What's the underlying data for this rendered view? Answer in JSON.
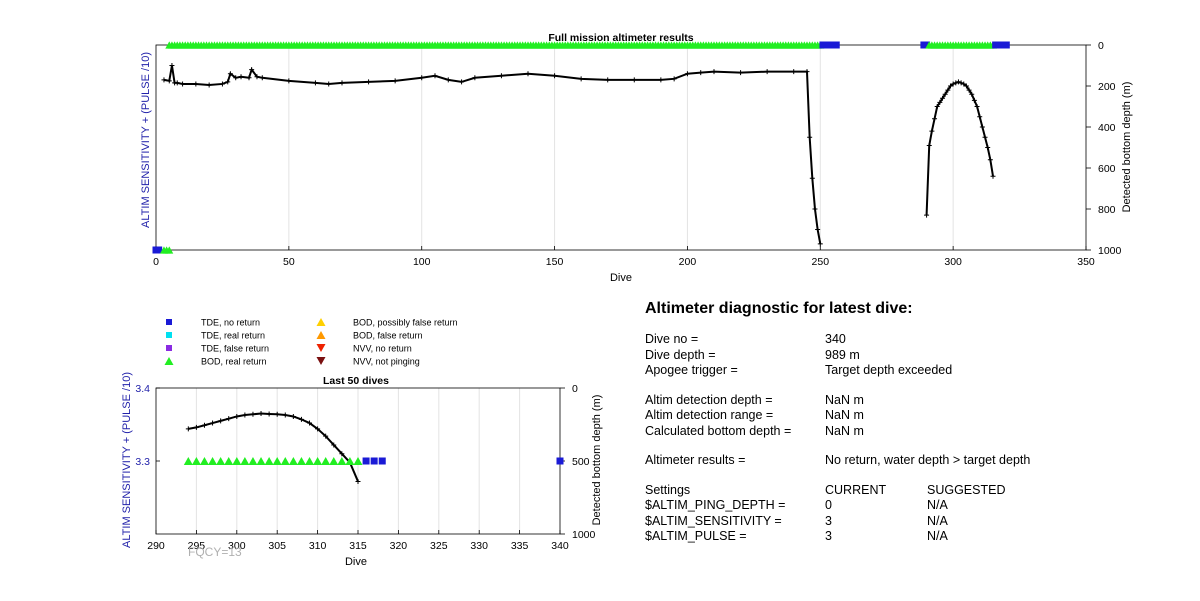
{
  "colors": {
    "tde_no_return": "#1a1ad6",
    "tde_real_return": "#00e0f0",
    "tde_false_return": "#8a2be2",
    "bod_real_return": "#22ee22",
    "bod_possibly_false": "#ffd000",
    "bod_false": "#ff9900",
    "nvv_no_return": "#ee2200",
    "nvv_not_pinging": "#7a1010",
    "axis_blue": "#2222aa",
    "line": "#000000"
  },
  "legend": [
    {
      "label": "TDE, no return",
      "marker": "square",
      "color_key": "tde_no_return"
    },
    {
      "label": "TDE, real return",
      "marker": "square",
      "color_key": "tde_real_return"
    },
    {
      "label": "TDE, false return",
      "marker": "square",
      "color_key": "tde_false_return"
    },
    {
      "label": "BOD, real return",
      "marker": "triangle-up",
      "color_key": "bod_real_return"
    },
    {
      "label": "BOD, possibly false return",
      "marker": "triangle-up",
      "color_key": "bod_possibly_false"
    },
    {
      "label": "BOD, false return",
      "marker": "triangle-up",
      "color_key": "bod_false"
    },
    {
      "label": "NVV, no return",
      "marker": "triangle-down",
      "color_key": "nvv_no_return"
    },
    {
      "label": "NVV, not pinging",
      "marker": "triangle-down",
      "color_key": "nvv_not_pinging"
    }
  ],
  "chart_data": [
    {
      "type": "line",
      "title": "Full mission altimeter results",
      "xlabel": "Dive",
      "ylabel_left": "ALTIM SENSITIVITY + (PULSE /10)",
      "ylabel_right": "Detected bottom depth (m)",
      "xlim": [
        0,
        350
      ],
      "xticks": [
        0,
        50,
        100,
        150,
        200,
        250,
        300,
        350
      ],
      "ylim_right": [
        0,
        1000
      ],
      "yticks_right": [
        0,
        200,
        400,
        600,
        800,
        1000
      ],
      "y_right_reversed": true,
      "grid": "x",
      "depth_series": [
        {
          "x": [
            3,
            5,
            6,
            7,
            8,
            10,
            15,
            20,
            25,
            27,
            28,
            30,
            32,
            35,
            36,
            38,
            40,
            50,
            60,
            65,
            70,
            80,
            90,
            100,
            105,
            110,
            115,
            120,
            130,
            140,
            150,
            160,
            170,
            180,
            190,
            195,
            200,
            205,
            210,
            220,
            230,
            240,
            245,
            246,
            247,
            248,
            249,
            250
          ],
          "y": [
            170,
            175,
            100,
            185,
            185,
            190,
            190,
            195,
            190,
            180,
            140,
            160,
            155,
            160,
            120,
            155,
            160,
            175,
            185,
            190,
            185,
            180,
            175,
            160,
            150,
            170,
            180,
            160,
            150,
            140,
            150,
            165,
            170,
            170,
            170,
            165,
            140,
            135,
            130,
            135,
            130,
            130,
            130,
            450,
            650,
            800,
            900,
            970
          ]
        },
        {
          "x": [
            290,
            291,
            292,
            293,
            294,
            295,
            296,
            297,
            298,
            299,
            300,
            301,
            302,
            303,
            304,
            305,
            306,
            307,
            308,
            309,
            310,
            311,
            312,
            313,
            314,
            315
          ],
          "y": [
            830,
            490,
            420,
            360,
            300,
            280,
            260,
            240,
            220,
            200,
            190,
            185,
            180,
            185,
            190,
            200,
            220,
            240,
            270,
            300,
            350,
            400,
            450,
            500,
            560,
            640
          ]
        }
      ],
      "markers": [
        {
          "status": "bod_real_return",
          "x_start": 5,
          "x_end": 250,
          "depth": 0
        },
        {
          "status": "tde_no_return",
          "x_start": 251,
          "x_end": 256,
          "depth": 0
        },
        {
          "status": "tde_no_return",
          "x_start": 289,
          "x_end": 290,
          "depth": 0
        },
        {
          "status": "bod_real_return",
          "x_start": 291,
          "x_end": 315,
          "depth": 0
        },
        {
          "status": "tde_no_return",
          "x_start": 316,
          "x_end": 320,
          "depth": 0
        },
        {
          "status": "tde_no_return",
          "x_start": 0,
          "x_end": 1,
          "depth": 1000
        },
        {
          "status": "bod_real_return",
          "x_start": 3,
          "x_end": 5,
          "depth": 1000
        }
      ]
    },
    {
      "type": "line",
      "title": "Last 50 dives",
      "xlabel": "Dive",
      "ylabel_left": "ALTIM SENSITIVITY + (PULSE /10)",
      "ylabel_right": "Detected bottom depth (m)",
      "xlim": [
        290,
        340
      ],
      "xticks": [
        290,
        295,
        300,
        305,
        310,
        315,
        320,
        325,
        330,
        335,
        340
      ],
      "ylim_left": [
        3.2,
        3.4
      ],
      "yticks_left": [
        3.3,
        3.4
      ],
      "ylim_right": [
        0,
        1000
      ],
      "yticks_right": [
        0,
        500,
        1000
      ],
      "y_right_reversed": true,
      "grid": "x",
      "depth_series": [
        {
          "x": [
            294,
            295,
            296,
            297,
            298,
            299,
            300,
            301,
            302,
            303,
            304,
            305,
            306,
            307,
            308,
            309,
            310,
            311,
            312,
            313,
            314,
            315
          ],
          "y": [
            280,
            270,
            255,
            240,
            225,
            210,
            195,
            185,
            180,
            175,
            178,
            180,
            185,
            195,
            215,
            240,
            280,
            330,
            390,
            450,
            510,
            640
          ]
        }
      ],
      "markers": [
        {
          "status": "bod_real_return",
          "x_start": 294,
          "x_end": 315,
          "value": 3.3
        },
        {
          "status": "tde_no_return",
          "x_start": 316,
          "x_end": 318,
          "value": 3.3
        },
        {
          "status": "tde_no_return",
          "x_start": 340,
          "x_end": 340,
          "value": 3.3
        }
      ]
    }
  ],
  "diagnostic": {
    "title": "Altimeter diagnostic for latest dive:",
    "groups": [
      [
        {
          "label": "Dive no =",
          "value": "340"
        },
        {
          "label": "Dive depth =",
          "value": "989 m"
        },
        {
          "label": "Apogee trigger =",
          "value": "Target depth exceeded"
        }
      ],
      [
        {
          "label": "Altim detection depth =",
          "value": "NaN m"
        },
        {
          "label": "Altim detection range =",
          "value": "NaN m"
        },
        {
          "label": "Calculated bottom depth =",
          "value": "NaN m"
        }
      ],
      [
        {
          "label": "Altimeter results =",
          "value": "No return, water depth > target depth"
        }
      ]
    ],
    "settings": {
      "header": [
        "Settings",
        "CURRENT",
        "SUGGESTED"
      ],
      "rows": [
        [
          "$ALTIM_PING_DEPTH =",
          "0",
          "N/A"
        ],
        [
          "$ALTIM_SENSITIVITY =",
          "3",
          "N/A"
        ],
        [
          "$ALTIM_PULSE =",
          "3",
          "N/A"
        ]
      ]
    }
  },
  "footer": {
    "fqcy": "FQCY=13"
  }
}
